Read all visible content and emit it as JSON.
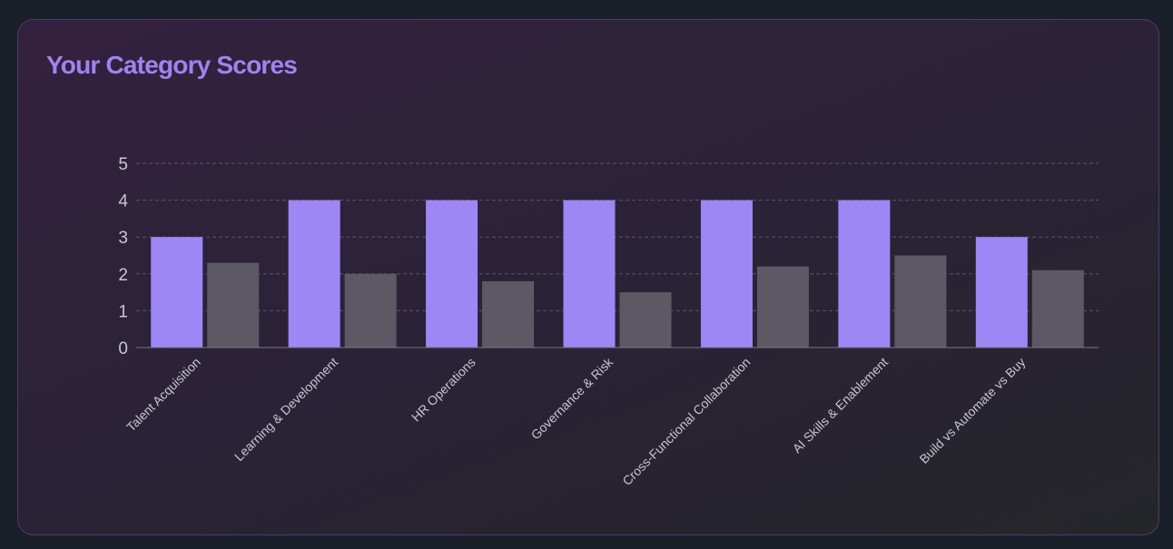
{
  "card": {
    "title": "Your Category Scores"
  },
  "chart_data": {
    "type": "bar",
    "title": "",
    "xlabel": "",
    "ylabel": "",
    "ylim": [
      0,
      5
    ],
    "yticks": [
      0,
      1,
      2,
      3,
      4,
      5
    ],
    "grid": true,
    "legend": "none",
    "categories": [
      "Talent Acquisition",
      "Learning & Development",
      "HR Operations",
      "Governance & Risk",
      "Cross-Functional Collaboration",
      "AI Skills & Enablement",
      "Build vs Automate vs Buy"
    ],
    "series": [
      {
        "values": [
          3,
          4,
          4,
          4,
          4,
          4,
          3
        ],
        "color": "#9d87f5"
      },
      {
        "values": [
          2.3,
          2.0,
          1.8,
          1.5,
          2.2,
          2.5,
          2.1
        ],
        "color": "#5d5964"
      }
    ],
    "colors": {
      "grid": "#5a5468",
      "axis": "#7a7484"
    }
  }
}
